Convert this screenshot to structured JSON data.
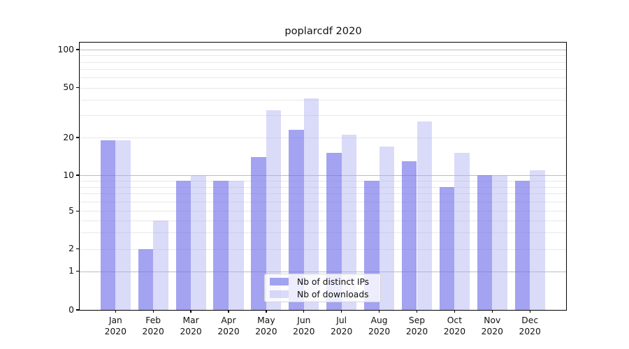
{
  "chart_data": {
    "type": "bar",
    "title": "poplarcdf 2020",
    "categories": [
      "Jan",
      "Feb",
      "Mar",
      "Apr",
      "May",
      "Jun",
      "Jul",
      "Aug",
      "Sep",
      "Oct",
      "Nov",
      "Dec"
    ],
    "category_year": "2020",
    "series": [
      {
        "name": "Nb of distinct IPs",
        "color": "#6e6eeb",
        "alpha": 0.63,
        "values": [
          19,
          2,
          9,
          9,
          14,
          23,
          15,
          9,
          13,
          8,
          10,
          9
        ]
      },
      {
        "name": "Nb of downloads",
        "color": "#aaaaf2",
        "alpha": 0.44,
        "values": [
          19,
          4,
          10,
          9,
          33,
          41,
          21,
          17,
          27,
          15,
          10,
          11
        ]
      }
    ],
    "y_axis": {
      "scale": "symlog",
      "range": [
        0,
        100
      ],
      "ticks": [
        0,
        1,
        2,
        5,
        10,
        20,
        50,
        100
      ],
      "major_gridlines": [
        1,
        10,
        100
      ],
      "minor_gridlines": [
        2,
        3,
        4,
        5,
        6,
        7,
        8,
        9,
        20,
        30,
        40,
        50,
        60,
        70,
        80,
        90
      ]
    },
    "legend": {
      "location": "lower-center-inside"
    },
    "grid": true
  },
  "colors": {
    "major_grid": "#bdbdbd",
    "minor_grid": "#e8e8e8",
    "spine": "#000000",
    "text": "#111111"
  }
}
